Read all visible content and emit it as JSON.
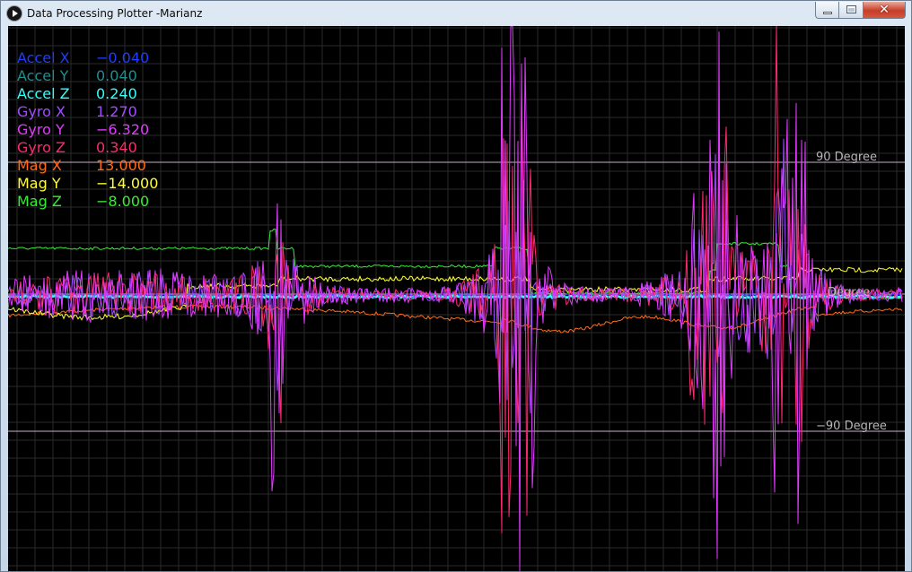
{
  "window": {
    "title": "Data Processing Plotter -Marianz",
    "icon": "play-circle-icon",
    "controls": {
      "minimize_icon": "minimize-icon",
      "maximize_icon": "maximize-icon",
      "close_icon": "close-icon",
      "close_glyph": "✕"
    }
  },
  "plot": {
    "background": "#000000",
    "grid_color": "#2a2a2a",
    "reference_lines": [
      {
        "label": "90 Degree",
        "color": "#c8b0c8"
      },
      {
        "label": "Degree",
        "color": "#c8b0c8"
      },
      {
        "label": "−90 Degree",
        "color": "#c8b0c8"
      }
    ]
  },
  "legend": [
    {
      "name": "Accel X",
      "value": "−0.040",
      "color": "#1f3cff"
    },
    {
      "name": "Accel Y",
      "value": "0.040",
      "color": "#1f8f8f"
    },
    {
      "name": "Accel Z",
      "value": "0.240",
      "color": "#33ffff"
    },
    {
      "name": "Gyro X",
      "value": "1.270",
      "color": "#a24dff"
    },
    {
      "name": "Gyro Y",
      "value": "−6.320",
      "color": "#e23bff"
    },
    {
      "name": "Gyro Z",
      "value": "0.340",
      "color": "#ff2a6e"
    },
    {
      "name": "Mag X",
      "value": "13.000",
      "color": "#ff6a1a"
    },
    {
      "name": "Mag Y",
      "value": "−14.000",
      "color": "#ffff33"
    },
    {
      "name": "Mag Z",
      "value": "−8.000",
      "color": "#33ee33"
    }
  ]
}
